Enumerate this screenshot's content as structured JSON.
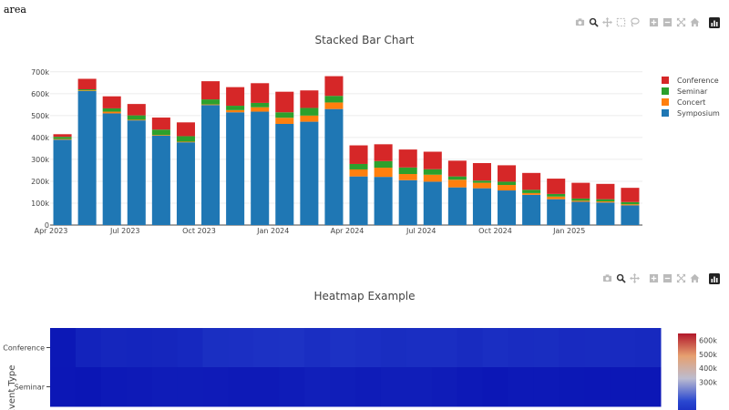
{
  "page_label": "area",
  "toolbar_icons": [
    "camera-icon",
    "zoom-icon",
    "pan-icon",
    "box-select-icon",
    "lasso-icon",
    "zoom-in-icon",
    "zoom-out-icon",
    "autoscale-icon",
    "home-icon",
    "plotly-logo-icon"
  ],
  "chart_data": [
    {
      "type": "bar",
      "stacked": true,
      "title": "Stacked Bar Chart",
      "x": [
        "2023-04",
        "2023-05",
        "2023-06",
        "2023-07",
        "2023-08",
        "2023-09",
        "2023-10",
        "2023-11",
        "2023-12",
        "2024-01",
        "2024-02",
        "2024-03",
        "2024-04",
        "2024-05",
        "2024-06",
        "2024-07",
        "2024-08",
        "2024-09",
        "2024-10",
        "2024-11",
        "2024-12",
        "2025-01",
        "2025-02",
        "2025-03"
      ],
      "x_tick_labels": [
        "Apr 2023",
        "Jul 2023",
        "Oct 2023",
        "Jan 2024",
        "Apr 2024",
        "Jul 2024",
        "Oct 2024",
        "Jan 2025"
      ],
      "y_tick_labels": [
        "0",
        "100k",
        "200k",
        "300k",
        "400k",
        "500k",
        "600k",
        "700k"
      ],
      "ylim": [
        0,
        720000
      ],
      "legend_position": "right",
      "grid": true,
      "series": [
        {
          "name": "Symposium",
          "color": "#1f77b4",
          "values": [
            390000,
            612000,
            510000,
            478000,
            408000,
            378000,
            548000,
            515000,
            518000,
            462000,
            472000,
            530000,
            222000,
            220000,
            205000,
            198000,
            172000,
            168000,
            158000,
            138000,
            118000,
            106000,
            103000,
            90000
          ]
        },
        {
          "name": "Concert",
          "color": "#ff7f0e",
          "values": [
            3000,
            3000,
            8000,
            3000,
            3000,
            3000,
            3000,
            10000,
            20000,
            28000,
            28000,
            30000,
            32000,
            42000,
            28000,
            32000,
            35000,
            25000,
            25000,
            8000,
            12000,
            5000,
            5000,
            5000
          ]
        },
        {
          "name": "Seminar",
          "color": "#2ca02c",
          "values": [
            10000,
            5000,
            15000,
            20000,
            25000,
            25000,
            23000,
            20000,
            20000,
            25000,
            35000,
            30000,
            25000,
            30000,
            30000,
            25000,
            15000,
            10000,
            15000,
            15000,
            12000,
            10000,
            10000,
            10000
          ]
        },
        {
          "name": "Conference",
          "color": "#d62728",
          "values": [
            12000,
            48000,
            55000,
            52000,
            55000,
            63000,
            83000,
            85000,
            90000,
            94000,
            80000,
            90000,
            85000,
            77000,
            82000,
            80000,
            72000,
            80000,
            75000,
            77000,
            70000,
            72000,
            70000,
            65000
          ]
        }
      ]
    },
    {
      "type": "heatmap",
      "title": "Heatmap Example",
      "ylabel": "Event Type",
      "y_categories": [
        "Conference",
        "Seminar"
      ],
      "colorbar_ticks": [
        "600k",
        "500k",
        "400k",
        "300k"
      ],
      "colorscale": [
        "#0a14b4",
        "#2a48d0",
        "#bcbcd0",
        "#e6a070",
        "#b2182b"
      ],
      "zlim": [
        0,
        650000
      ],
      "rows": [
        {
          "name": "Conference",
          "values": [
            12000,
            48000,
            55000,
            52000,
            55000,
            63000,
            83000,
            85000,
            90000,
            94000,
            80000,
            90000,
            85000,
            77000,
            82000,
            80000,
            72000,
            80000,
            75000,
            77000,
            70000,
            72000,
            70000,
            65000
          ]
        },
        {
          "name": "Seminar",
          "values": [
            10000,
            5000,
            15000,
            20000,
            25000,
            25000,
            23000,
            20000,
            20000,
            25000,
            35000,
            30000,
            25000,
            30000,
            30000,
            25000,
            15000,
            10000,
            15000,
            15000,
            12000,
            10000,
            10000,
            10000
          ]
        }
      ]
    }
  ]
}
